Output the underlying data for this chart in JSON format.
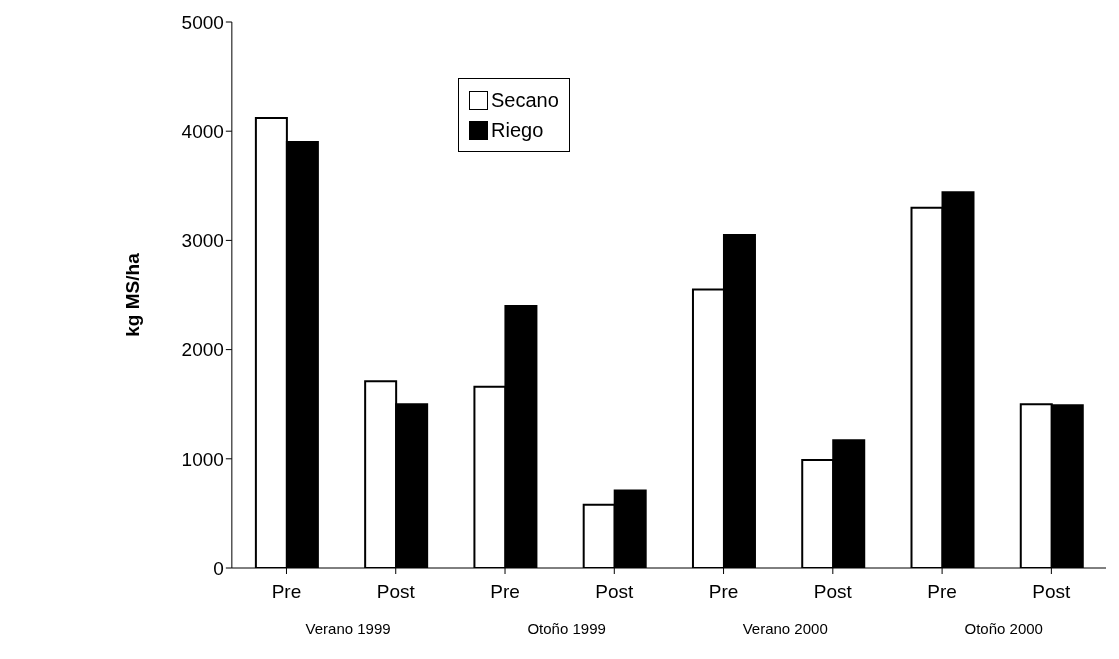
{
  "chart_data": {
    "type": "bar",
    "ylabel": "kg MS/ha",
    "categories": [
      "Pre",
      "Post",
      "Pre",
      "Post",
      "Pre",
      "Post",
      "Pre",
      "Post"
    ],
    "series": [
      {
        "name": "Secano",
        "color": "#ffffff",
        "values": [
          4120,
          1710,
          1660,
          580,
          2550,
          990,
          3300,
          1500
        ]
      },
      {
        "name": "Riego",
        "color": "#000000",
        "values": [
          3900,
          1500,
          2400,
          710,
          3050,
          1170,
          3440,
          1490
        ]
      }
    ],
    "ylim": [
      0,
      5000
    ],
    "yticks": [
      0,
      1000,
      2000,
      3000,
      4000,
      5000
    ],
    "grid": false,
    "legend": "top",
    "annotations": [
      "Verano 1999",
      "Otoño 1999",
      "Verano 2000",
      "Otoño 2000"
    ]
  }
}
